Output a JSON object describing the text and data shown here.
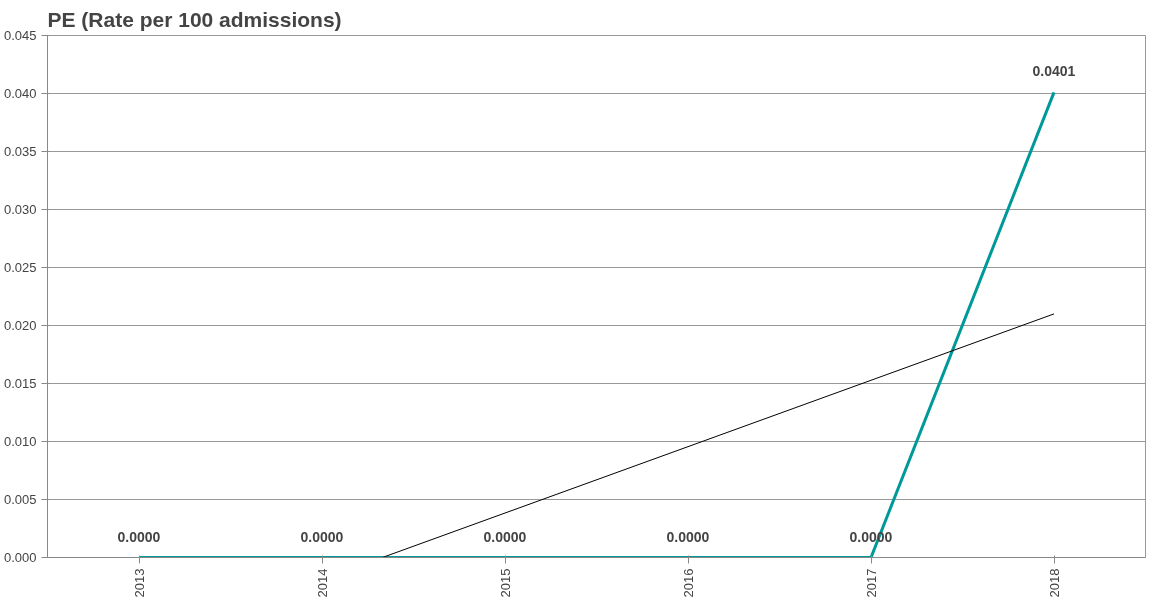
{
  "chart_data": {
    "type": "line",
    "title": "PE (Rate per 100 admissions)",
    "x": [
      2013,
      2014,
      2015,
      2016,
      2017,
      2018
    ],
    "series": [
      {
        "color": "#009999",
        "values": [
          0,
          0,
          0,
          0,
          0,
          0.0401
        ],
        "value_labels": [
          "0.0000",
          "0.0000",
          "0.0000",
          "0.0000",
          "0.0000",
          "0.0401"
        ]
      },
      {
        "color": "#000000",
        "x": [
          2014.33,
          2018
        ],
        "values": [
          0,
          0.021
        ]
      }
    ],
    "xlim": [
      2012.5,
      2018.5
    ],
    "xticks": [
      2013,
      2014,
      2015,
      2016,
      2017,
      2018
    ],
    "ylim": [
      0,
      0.045
    ],
    "yticks": [
      {
        "value": 0,
        "label": "0.000"
      },
      {
        "value": 0.005,
        "label": "0.005"
      },
      {
        "value": 0.01,
        "label": "0.010"
      },
      {
        "value": 0.015,
        "label": "0.015"
      },
      {
        "value": 0.02,
        "label": "0.020"
      },
      {
        "value": 0.025,
        "label": "0.025"
      },
      {
        "value": 0.03,
        "label": "0.030"
      },
      {
        "value": 0.035,
        "label": "0.035"
      },
      {
        "value": 0.04,
        "label": "0.040"
      },
      {
        "value": 0.045,
        "label": "0.045"
      }
    ],
    "grid": "y",
    "marker": "none",
    "line_style": "solid"
  }
}
